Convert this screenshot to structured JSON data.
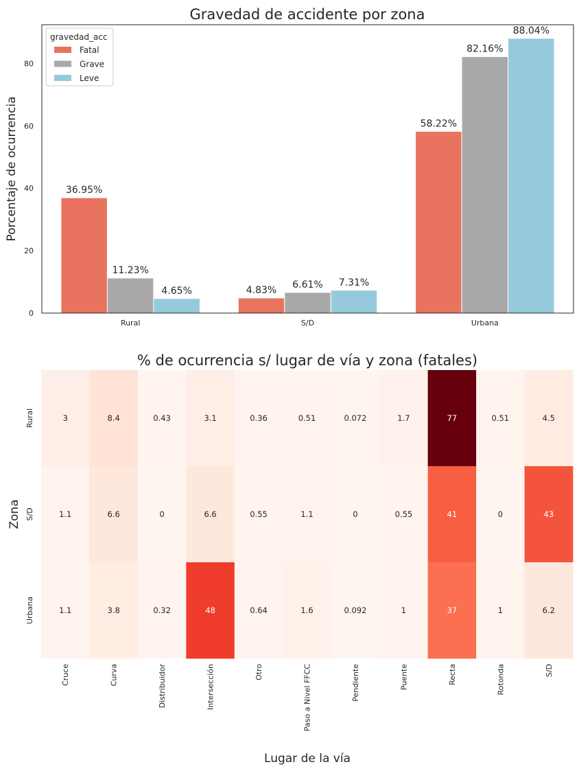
{
  "chart_data": [
    {
      "type": "bar",
      "title": "Gravedad de accidente por zona",
      "xlabel": "",
      "ylabel": "Porcentaje de ocurrencia",
      "categories": [
        "Rural",
        "S/D",
        "Urbana"
      ],
      "ylim": [
        0,
        92.4
      ],
      "yticks": [
        0,
        20,
        40,
        60,
        80
      ],
      "grid": false,
      "legend": {
        "title": "gravedad_acc",
        "placement": "top-left"
      },
      "series": [
        {
          "name": "Fatal",
          "color": "#E8735F",
          "values": [
            36.95,
            4.83,
            58.22
          ],
          "labels": [
            "36.95%",
            "4.83%",
            "58.22%"
          ]
        },
        {
          "name": "Grave",
          "color": "#A9A9A9",
          "values": [
            11.23,
            6.61,
            82.16
          ],
          "labels": [
            "11.23%",
            "6.61%",
            "82.16%"
          ]
        },
        {
          "name": "Leve",
          "color": "#96C9DC",
          "values": [
            4.65,
            7.31,
            88.04
          ],
          "labels": [
            "4.65%",
            "7.31%",
            "88.04%"
          ]
        }
      ]
    },
    {
      "type": "heatmap",
      "title": "% de ocurrencia s/ lugar de vía y zona (fatales)",
      "xlabel": "Lugar de la vía",
      "ylabel": "Zona",
      "colormap": "Reds",
      "x": [
        "Cruce",
        "Curva",
        "Distribuidor",
        "Intersección",
        "Otro",
        "Paso a Nivel FFCC",
        "Pendiente",
        "Puente",
        "Recta",
        "Rotonda",
        "S/D"
      ],
      "y": [
        "Rural",
        "S/D",
        "Urbana"
      ],
      "values": [
        [
          3,
          8.4,
          0.43,
          3.1,
          0.36,
          0.51,
          0.072,
          1.7,
          77,
          0.51,
          4.5
        ],
        [
          1.1,
          6.6,
          0,
          6.6,
          0.55,
          1.1,
          0,
          0.55,
          41,
          0,
          43
        ],
        [
          1.1,
          3.8,
          0.32,
          48,
          0.64,
          1.6,
          0.092,
          1,
          37,
          1,
          6.2
        ]
      ],
      "labels": [
        [
          "3",
          "8.4",
          "0.43",
          "3.1",
          "0.36",
          "0.51",
          "0.072",
          "1.7",
          "77",
          "0.51",
          "4.5"
        ],
        [
          "1.1",
          "6.6",
          "0",
          "6.6",
          "0.55",
          "1.1",
          "0",
          "0.55",
          "41",
          "0",
          "43"
        ],
        [
          "1.1",
          "3.8",
          "0.32",
          "48",
          "0.64",
          "1.6",
          "0.092",
          "1",
          "37",
          "1",
          "6.2"
        ]
      ],
      "colorbar": false
    }
  ]
}
